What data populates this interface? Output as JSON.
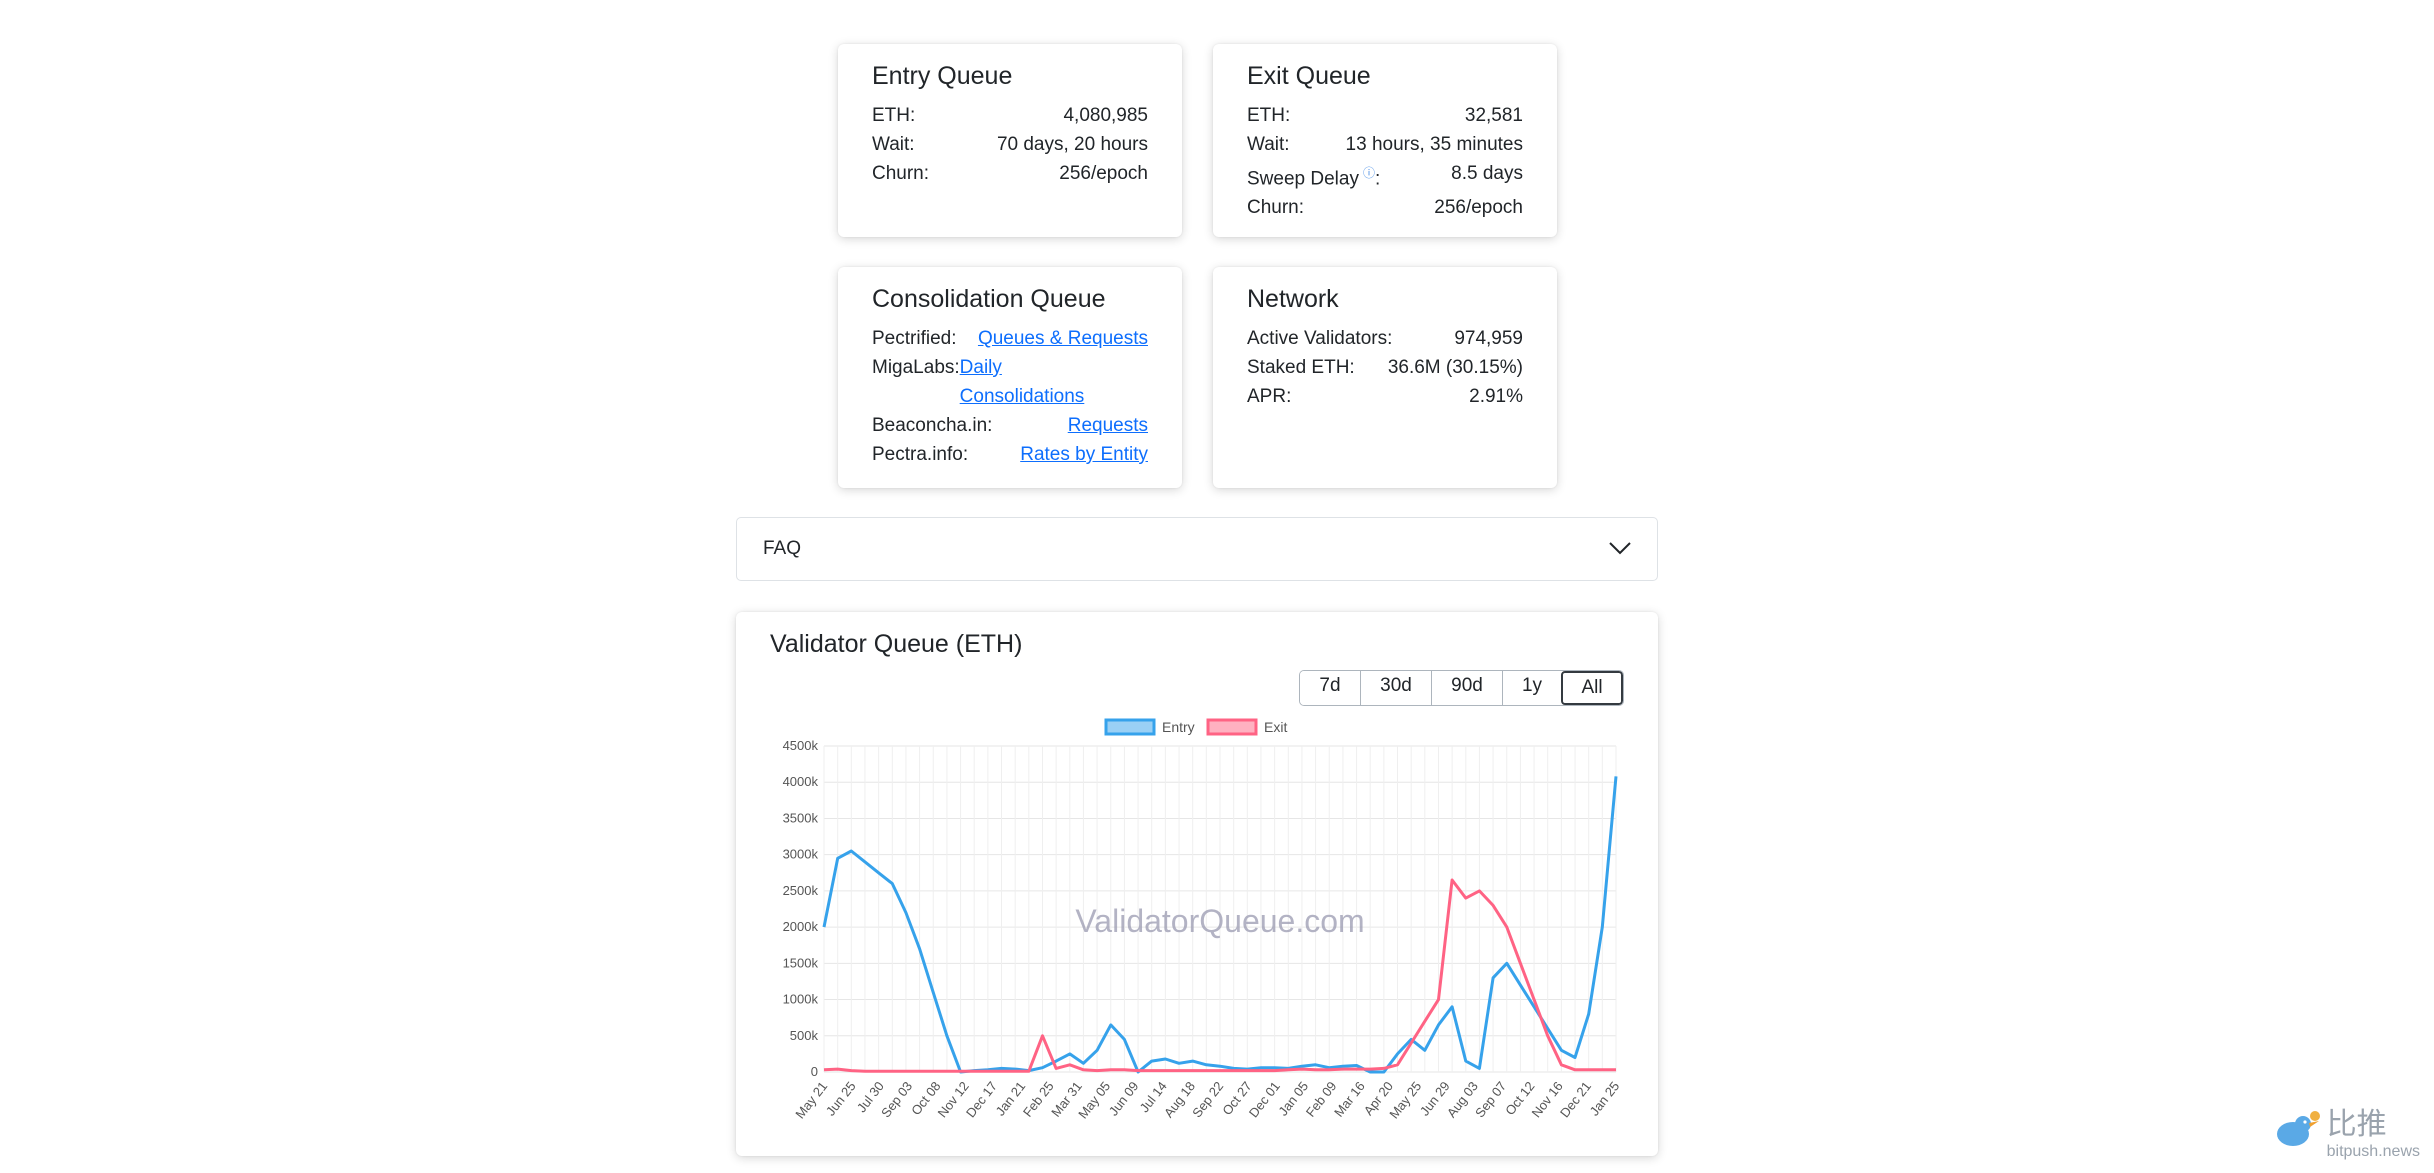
{
  "entry_queue": {
    "title": "Entry Queue",
    "rows": [
      {
        "label": "ETH:",
        "value": "4,080,985"
      },
      {
        "label": "Wait:",
        "value": "70 days, 20 hours"
      },
      {
        "label": "Churn:",
        "value": "256/epoch"
      }
    ]
  },
  "exit_queue": {
    "title": "Exit Queue",
    "rows": [
      {
        "label": "ETH:",
        "value": "32,581"
      },
      {
        "label": "Wait:",
        "value": "13 hours, 35 minutes"
      },
      {
        "label": "Sweep Delay",
        "value": "8.5 days"
      },
      {
        "label": "Churn:",
        "value": "256/epoch"
      }
    ],
    "sweep_suffix": ":",
    "info_icon": "ⓘ"
  },
  "consolidation_queue": {
    "title": "Consolidation Queue",
    "rows": [
      {
        "label": "Pectrified:",
        "link": "Queues & Requests"
      },
      {
        "label": "MigaLabs:",
        "link": "Daily Consolidations"
      },
      {
        "label": "Beaconcha.in:",
        "link": "Requests"
      },
      {
        "label": "Pectra.info:",
        "link": "Rates by Entity"
      }
    ]
  },
  "network": {
    "title": "Network",
    "rows": [
      {
        "label": "Active Validators:",
        "value": "974,959"
      },
      {
        "label": "Staked ETH:",
        "value": "36.6M (30.15%)"
      },
      {
        "label": "APR:",
        "value": "2.91%"
      }
    ]
  },
  "faq": {
    "label": "FAQ"
  },
  "chart": {
    "title": "Validator Queue (ETH)",
    "ranges": [
      "7d",
      "30d",
      "90d",
      "1y",
      "All"
    ],
    "active_range": "All",
    "watermark": "ValidatorQueue.com"
  },
  "chart_data": {
    "type": "line",
    "title": "Validator Queue (ETH)",
    "ylim": [
      0,
      4500000
    ],
    "y_ticks": [
      "0",
      "500k",
      "1000k",
      "1500k",
      "2000k",
      "2500k",
      "3000k",
      "3500k",
      "4000k",
      "4500k"
    ],
    "x_ticks": [
      "May 21",
      "Jun 25",
      "Jul 30",
      "Sep 03",
      "Oct 08",
      "Nov 12",
      "Dec 17",
      "Jan 21",
      "Feb 25",
      "Mar 31",
      "May 05",
      "Jun 09",
      "Jul 14",
      "Aug 18",
      "Sep 22",
      "Oct 27",
      "Dec 01",
      "Jan 05",
      "Feb 09",
      "Mar 16",
      "Apr 20",
      "May 25",
      "Jun 29",
      "Aug 03",
      "Sep 07",
      "Oct 12",
      "Nov 16",
      "Dec 21",
      "Jan 25"
    ],
    "legend_position": "top",
    "grid": true,
    "series": [
      {
        "name": "Entry",
        "color": "#36a2eb",
        "values": [
          2000000,
          2950000,
          3050000,
          2900000,
          2750000,
          2600000,
          2200000,
          1700000,
          1100000,
          500000,
          0,
          20000,
          30000,
          50000,
          40000,
          20000,
          60000,
          150000,
          250000,
          120000,
          300000,
          650000,
          450000,
          0,
          150000,
          180000,
          120000,
          150000,
          100000,
          80000,
          50000,
          40000,
          60000,
          60000,
          50000,
          80000,
          100000,
          60000,
          80000,
          90000,
          0,
          0,
          250000,
          450000,
          300000,
          650000,
          900000,
          150000,
          50000,
          1300000,
          1500000,
          1200000,
          900000,
          600000,
          300000,
          200000,
          800000,
          2000000,
          4080000
        ]
      },
      {
        "name": "Exit",
        "color": "#ff6384",
        "values": [
          30000,
          40000,
          20000,
          10000,
          10000,
          10000,
          10000,
          10000,
          10000,
          10000,
          10000,
          10000,
          10000,
          10000,
          10000,
          10000,
          500000,
          50000,
          100000,
          30000,
          20000,
          30000,
          30000,
          20000,
          20000,
          20000,
          20000,
          20000,
          20000,
          20000,
          20000,
          20000,
          20000,
          20000,
          30000,
          40000,
          30000,
          30000,
          40000,
          40000,
          40000,
          50000,
          100000,
          400000,
          700000,
          1000000,
          2650000,
          2400000,
          2500000,
          2300000,
          2000000,
          1500000,
          1000000,
          500000,
          100000,
          30000,
          30000,
          30000,
          30000
        ]
      }
    ]
  },
  "footer_watermark": {
    "cn": "比推",
    "url": "bitpush.news"
  }
}
